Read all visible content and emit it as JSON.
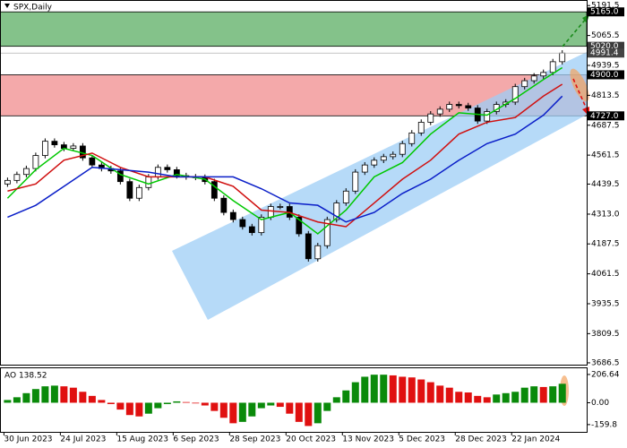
{
  "chart_data": {
    "type": "candlestick",
    "title": "SPX,Daily",
    "xlim": [
      -0.8,
      61.6
    ],
    "xticks": [
      {
        "value": 0,
        "label": "30 Jun 2023"
      },
      {
        "value": 6,
        "label": "24 Jul 2023"
      },
      {
        "value": 12,
        "label": "15 Aug 2023"
      },
      {
        "value": 18,
        "label": "6 Sep 2023"
      },
      {
        "value": 24,
        "label": "28 Sep 2023"
      },
      {
        "value": 30,
        "label": "20 Oct 2023"
      },
      {
        "value": 36,
        "label": "13 Nov 2023"
      },
      {
        "value": 42,
        "label": "5 Dec 2023"
      },
      {
        "value": 48,
        "label": "28 Dec 2023"
      },
      {
        "value": 54,
        "label": "22 Jan 2024"
      }
    ],
    "ylim": [
      3675,
      5215
    ],
    "yticks": [
      5191.5,
      5065.5,
      4939.5,
      4813.5,
      4687.5,
      4561.5,
      4439.5,
      {
        "value": 4313,
        "label": "4313.0"
      },
      4187.5,
      4061.5,
      3935.5,
      3809.5,
      3686.5
    ],
    "open": [
      4440,
      4455,
      4480,
      4505,
      4560,
      4620,
      4605,
      4590,
      4600,
      4550,
      4520,
      4505,
      4495,
      4450,
      4380,
      4425,
      4470,
      4510,
      4500,
      4475,
      4470,
      4468,
      4450,
      4380,
      4320,
      4290,
      4260,
      4235,
      4300,
      4345,
      4345,
      4300,
      4230,
      4125,
      4180,
      4290,
      4360,
      4410,
      4490,
      4520,
      4540,
      4555,
      4565,
      4610,
      4655,
      4700,
      4735,
      4755,
      4775,
      4770,
      4760,
      4705,
      4745,
      4775,
      4785,
      4850,
      4875,
      4895,
      4910,
      4955
    ],
    "high": [
      4467,
      4492,
      4517,
      4572,
      4632,
      4632,
      4617,
      4612,
      4612,
      4562,
      4532,
      4517,
      4507,
      4462,
      4437,
      4482,
      4522,
      4522,
      4512,
      4487,
      4482,
      4480,
      4462,
      4392,
      4332,
      4302,
      4272,
      4312,
      4357,
      4357,
      4357,
      4312,
      4242,
      4192,
      4302,
      4372,
      4422,
      4502,
      4532,
      4552,
      4567,
      4577,
      4622,
      4667,
      4712,
      4747,
      4767,
      4787,
      4787,
      4782,
      4772,
      4757,
      4787,
      4797,
      4862,
      4887,
      4907,
      4922,
      4967,
      5003.4
    ],
    "low": [
      4428,
      4443,
      4468,
      4493,
      4548,
      4593,
      4578,
      4578,
      4538,
      4508,
      4493,
      4483,
      4438,
      4368,
      4368,
      4413,
      4458,
      4488,
      4463,
      4458,
      4456,
      4438,
      4368,
      4308,
      4278,
      4248,
      4223,
      4223,
      4288,
      4333,
      4288,
      4218,
      4113,
      4113,
      4168,
      4278,
      4348,
      4398,
      4478,
      4508,
      4528,
      4543,
      4553,
      4598,
      4643,
      4688,
      4723,
      4743,
      4758,
      4748,
      4693,
      4693,
      4733,
      4763,
      4773,
      4838,
      4863,
      4883,
      4898,
      4943
    ],
    "close": [
      4455,
      4480,
      4505,
      4560,
      4620,
      4605,
      4590,
      4600,
      4550,
      4520,
      4505,
      4495,
      4450,
      4380,
      4425,
      4470,
      4510,
      4500,
      4475,
      4470,
      4468,
      4450,
      4380,
      4320,
      4290,
      4260,
      4235,
      4300,
      4345,
      4345,
      4300,
      4230,
      4125,
      4180,
      4290,
      4360,
      4410,
      4490,
      4520,
      4540,
      4555,
      4565,
      4610,
      4655,
      4700,
      4735,
      4755,
      4775,
      4770,
      4760,
      4705,
      4745,
      4775,
      4785,
      4850,
      4875,
      4895,
      4910,
      4955,
      4991.4
    ],
    "up_color": "#ffffff",
    "down_color": "#000000",
    "ma_x": [
      0,
      3,
      6,
      9,
      12,
      15,
      18,
      21,
      24,
      27,
      30,
      33,
      36,
      39,
      42,
      45,
      48,
      51,
      54,
      57,
      59
    ],
    "moving_averages": [
      {
        "color": "#00c800",
        "values": [
          4380,
          4500,
          4590,
          4560,
          4480,
          4440,
          4480,
          4460,
          4370,
          4290,
          4320,
          4230,
          4330,
          4470,
          4530,
          4650,
          4740,
          4730,
          4800,
          4880,
          4930
        ]
      },
      {
        "color": "#d01010",
        "values": [
          4410,
          4440,
          4540,
          4570,
          4510,
          4470,
          4470,
          4470,
          4430,
          4330,
          4320,
          4280,
          4260,
          4360,
          4460,
          4540,
          4650,
          4700,
          4720,
          4810,
          4860
        ]
      },
      {
        "color": "#0a1ec8",
        "values": [
          4300,
          4350,
          4430,
          4510,
          4500,
          4490,
          4470,
          4470,
          4470,
          4420,
          4360,
          4350,
          4280,
          4320,
          4400,
          4460,
          4540,
          4610,
          4650,
          4730,
          4810
        ]
      }
    ],
    "zones": [
      {
        "color": "#84c28a",
        "low": {
          "value": 5020,
          "label": "5020.0"
        },
        "high": {
          "value": 5165,
          "label": "5165.0"
        }
      },
      {
        "color": "#f4a9aa",
        "low": {
          "value": 4727,
          "label": "4727.0"
        },
        "high": {
          "value": 4900,
          "label": "4900.0"
        }
      }
    ],
    "last_price": 4991.4,
    "indicator": {
      "label": "AO 138.52",
      "ylim": [
        -213,
        252
      ],
      "yticks": [
        206.64,
        {
          "value": 0,
          "label": "0.00"
        },
        -159.8
      ],
      "up_color": "#0a8a0a",
      "down_color": "#e01010",
      "values": [
        20,
        40,
        70,
        100,
        120,
        125,
        120,
        110,
        80,
        50,
        20,
        -10,
        -50,
        -90,
        -100,
        -80,
        -40,
        -10,
        10,
        5,
        -5,
        -20,
        -60,
        -110,
        -150,
        -140,
        -100,
        -40,
        -20,
        -30,
        -80,
        -140,
        -170,
        -150,
        -60,
        40,
        90,
        150,
        190,
        205,
        205,
        200,
        190,
        185,
        170,
        150,
        125,
        110,
        80,
        75,
        50,
        40,
        60,
        70,
        80,
        110,
        120,
        115,
        120,
        138.52
      ]
    }
  }
}
